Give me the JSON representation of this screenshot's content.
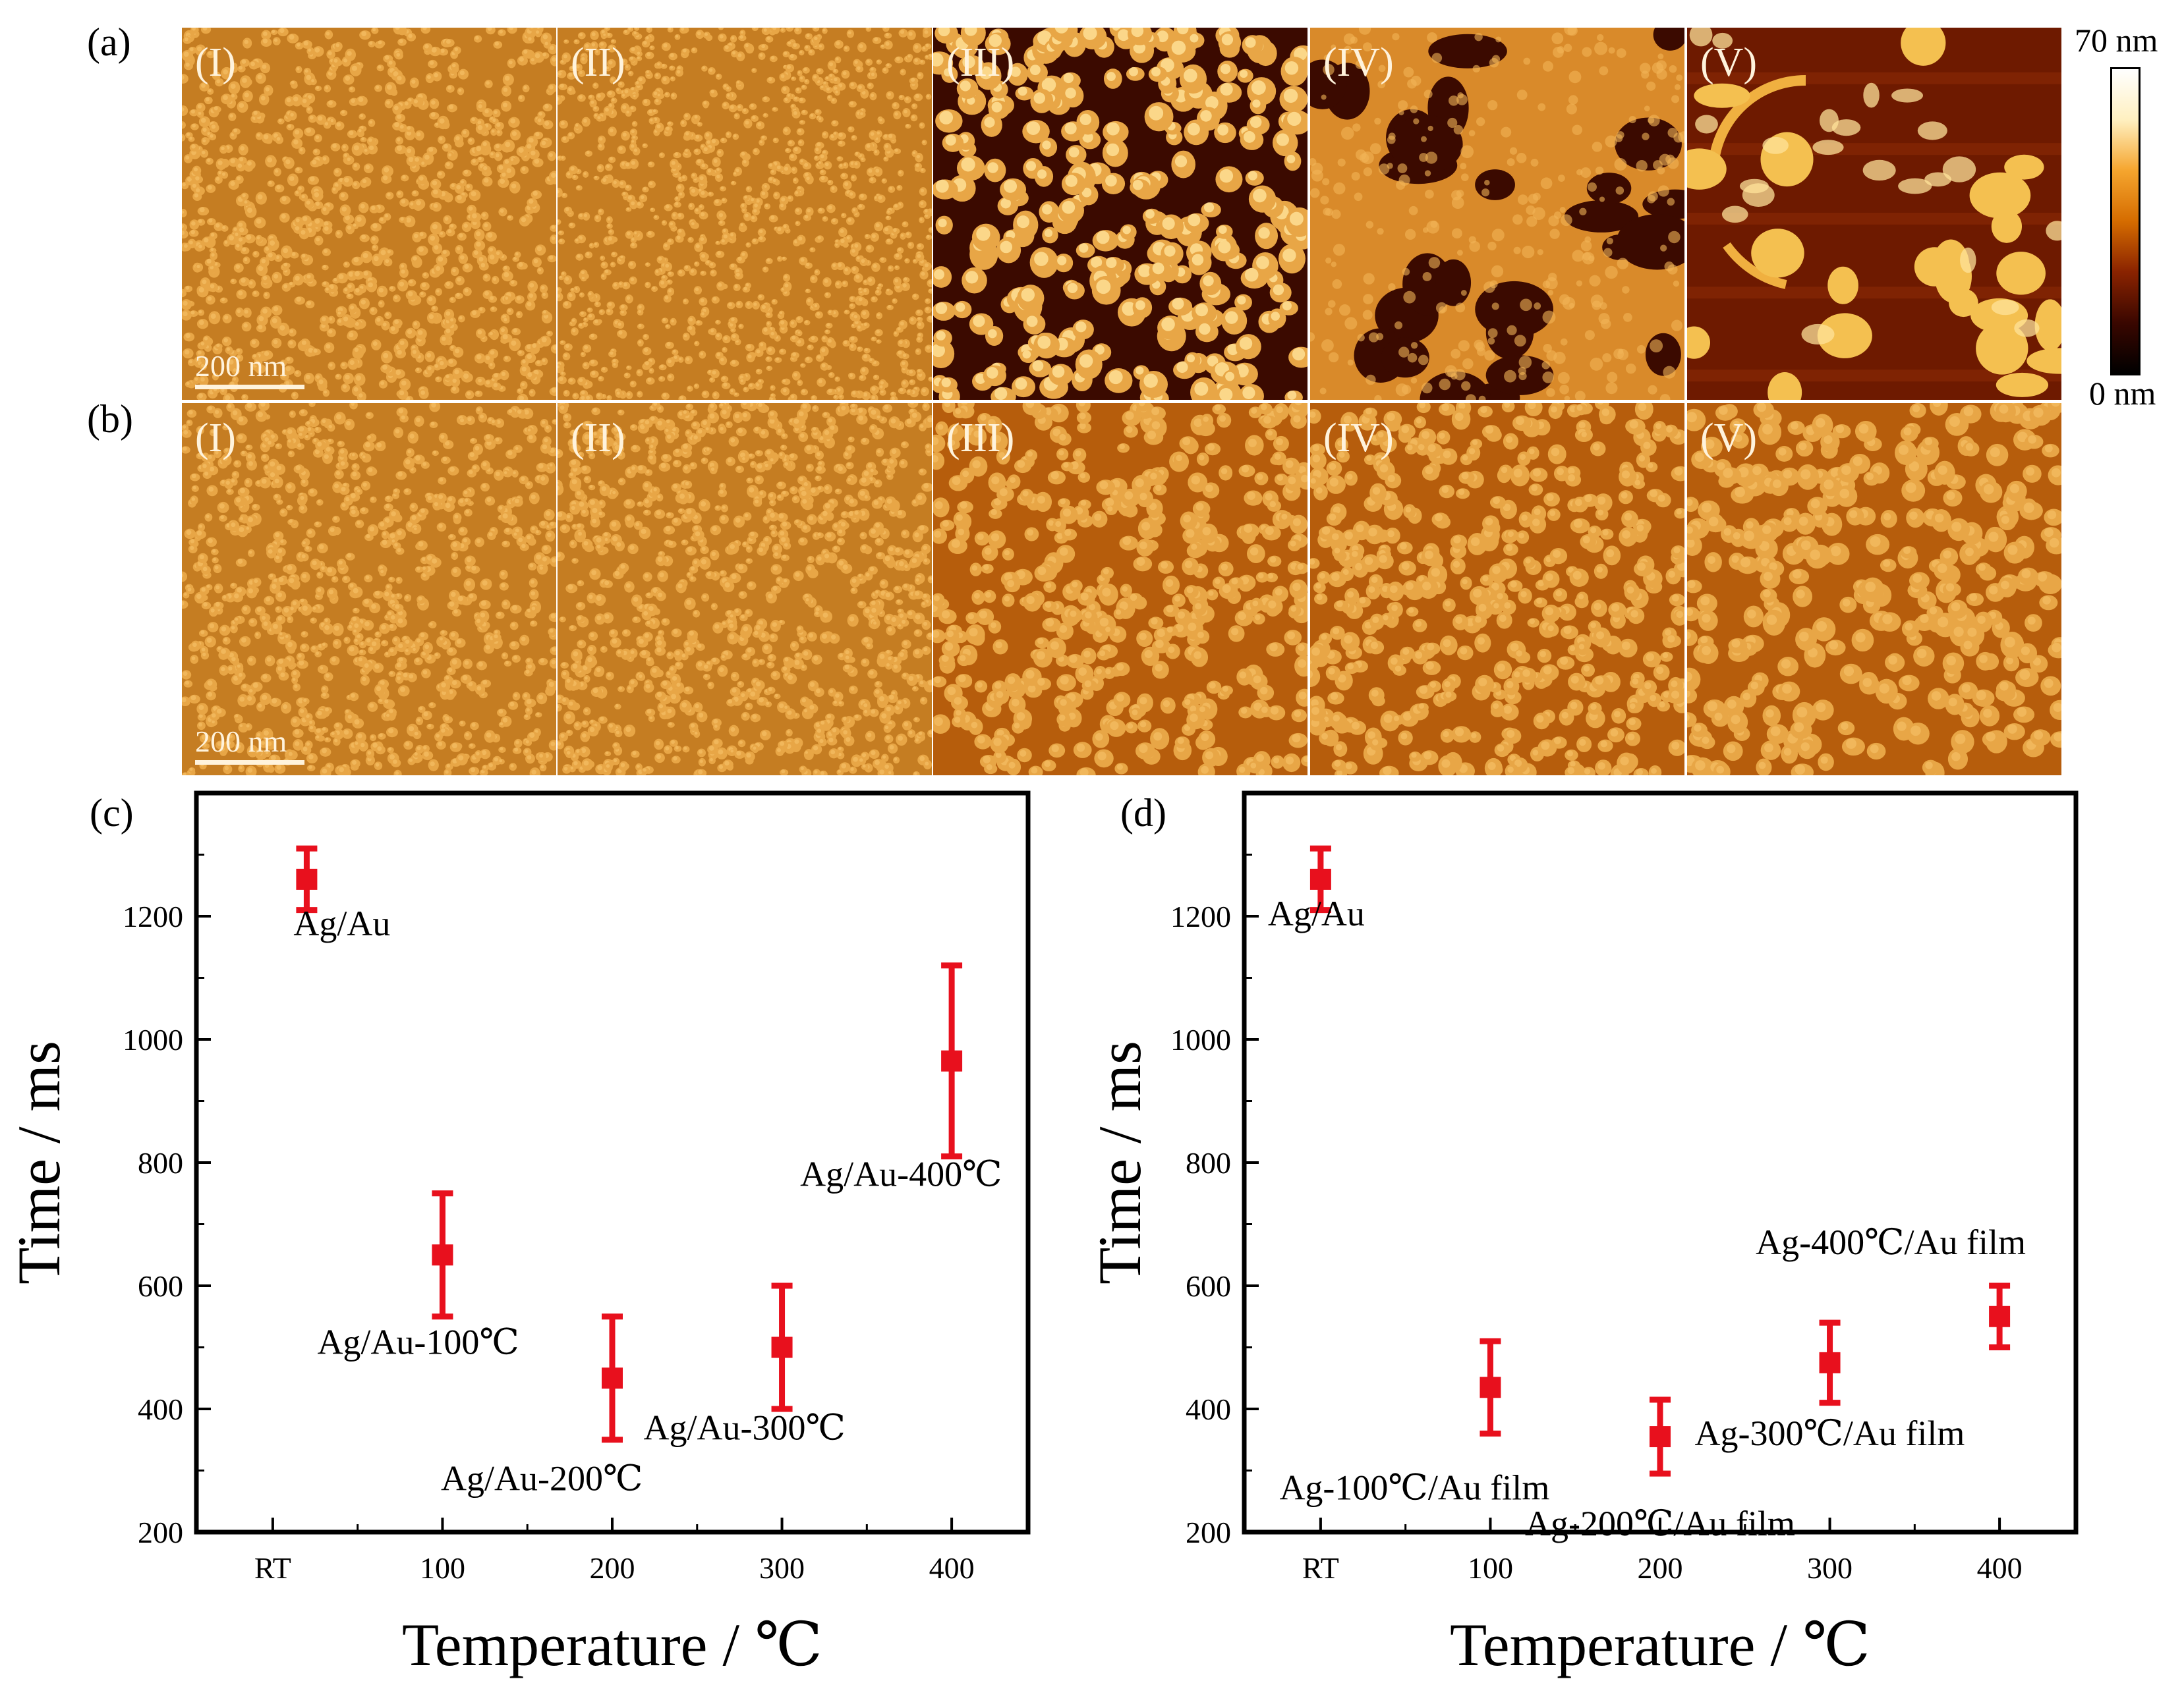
{
  "figure": {
    "panel_a_label": "(a)",
    "panel_b_label": "(b)",
    "roman_labels": [
      "(I)",
      "(II)",
      "(III)",
      "(IV)",
      "(V)"
    ],
    "scale_bar_text": "200 nm",
    "colorbar": {
      "max_label": "70 nm",
      "min_label": "0 nm",
      "colors": [
        "#000000",
        "#3a0700",
        "#8a2300",
        "#d56c00",
        "#f5a52e",
        "#fff0c0",
        "#ffffff"
      ]
    },
    "afm_colors": {
      "base": "#c57d22",
      "grain": "#e8a646",
      "dark": "#3b0a00",
      "mid": "#b65d0c",
      "bright": "#ffe39a"
    }
  },
  "chart_data": [
    {
      "panel": "(c)",
      "type": "scatter",
      "title": "",
      "xlabel": "Temperature / ℃",
      "ylabel": "Time / ms",
      "x_tick_labels": [
        "RT",
        "100",
        "200",
        "300",
        "400"
      ],
      "x_tick_values": [
        0,
        100,
        200,
        300,
        400
      ],
      "xlim": [
        -45,
        445
      ],
      "y_tick_values": [
        200,
        400,
        600,
        800,
        1000,
        1200
      ],
      "ylim": [
        200,
        1400
      ],
      "marker_color": "#e8101d",
      "points": [
        {
          "x": 20,
          "y": 1260,
          "yerr": 50,
          "label": "Ag/Au"
        },
        {
          "x": 100,
          "y": 650,
          "yerr": 100,
          "label": "Ag/Au-100℃"
        },
        {
          "x": 200,
          "y": 450,
          "yerr": 100,
          "label": "Ag/Au-200℃"
        },
        {
          "x": 300,
          "y": 500,
          "yerr": 100,
          "label": "Ag/Au-300℃"
        },
        {
          "x": 400,
          "y": 965,
          "yerr": 155,
          "label": "Ag/Au-400℃"
        }
      ]
    },
    {
      "panel": "(d)",
      "type": "scatter",
      "title": "",
      "xlabel": "Temperature / ℃",
      "ylabel": "Time / ms",
      "x_tick_labels": [
        "RT",
        "100",
        "200",
        "300",
        "400"
      ],
      "x_tick_values": [
        0,
        100,
        200,
        300,
        400
      ],
      "xlim": [
        -45,
        445
      ],
      "y_tick_values": [
        200,
        400,
        600,
        800,
        1000,
        1200
      ],
      "ylim": [
        200,
        1400
      ],
      "marker_color": "#e8101d",
      "points": [
        {
          "x": 0,
          "y": 1260,
          "yerr": 50,
          "label": "Ag/Au"
        },
        {
          "x": 100,
          "y": 435,
          "yerr": 75,
          "label": "Ag-100℃/Au film"
        },
        {
          "x": 200,
          "y": 355,
          "yerr": 60,
          "label": "Ag-200℃/Au film"
        },
        {
          "x": 300,
          "y": 475,
          "yerr": 65,
          "label": "Ag-300℃/Au film"
        },
        {
          "x": 400,
          "y": 550,
          "yerr": 50,
          "label": "Ag-400℃/Au film"
        }
      ]
    }
  ]
}
